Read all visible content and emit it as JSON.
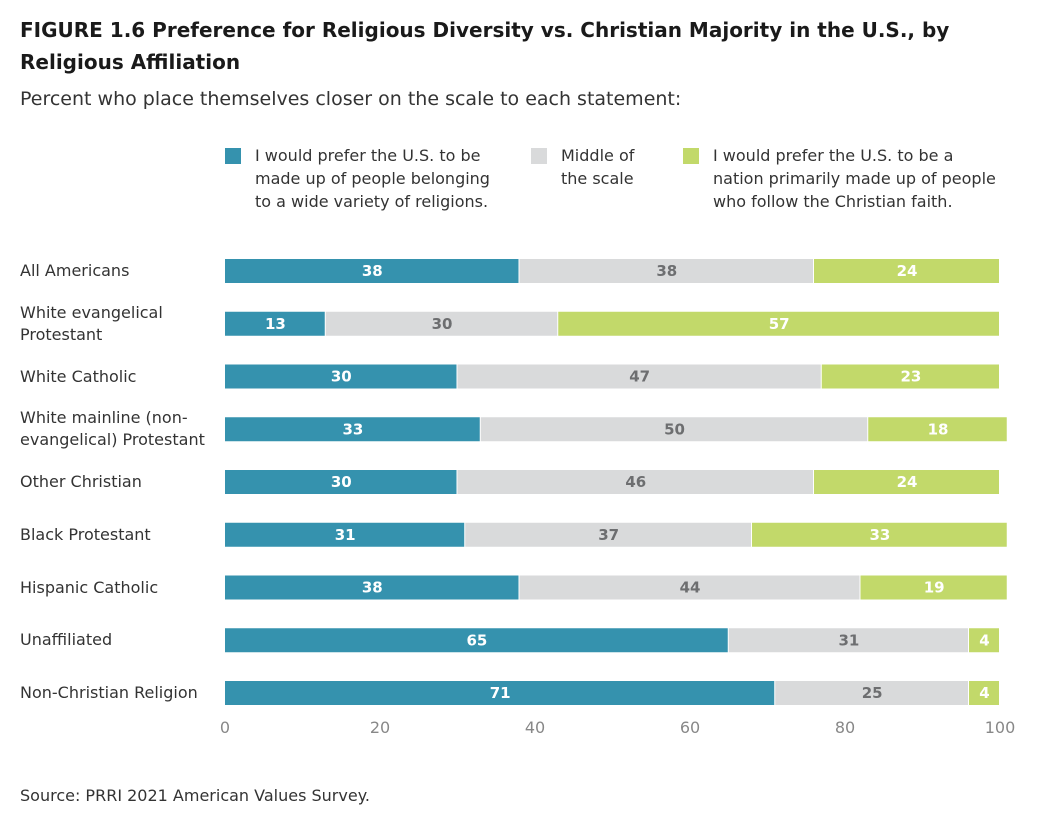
{
  "title": "FIGURE 1.6 Preference for Religious Diversity vs. Christian Majority in the U.S., by Religious Affiliation",
  "subtitle": "Percent who place themselves closer on the scale to each statement:",
  "source": "Source: PRRI 2021 American Values Survey.",
  "colors": {
    "variety": "#3592ae",
    "middle": "#d9dadb",
    "christian": "#c2d96a"
  },
  "chart_data": {
    "type": "bar",
    "orientation": "horizontal",
    "stacked": true,
    "categories": [
      "All Americans",
      "White evangelical\nProtestant",
      "White Catholic",
      "White mainline (non-\nevangelical) Protestant",
      "Other Christian",
      "Black Protestant",
      "Hispanic Catholic",
      "Unaffiliated",
      "Non-Christian Religion"
    ],
    "series": [
      {
        "name": "I would prefer the U.S. to be\nmade up of people belonging\nto a wide variety of religions.",
        "values": [
          38,
          13,
          30,
          33,
          30,
          31,
          38,
          65,
          71
        ]
      },
      {
        "name": "Middle of\nthe scale",
        "values": [
          38,
          30,
          47,
          50,
          46,
          37,
          44,
          31,
          25
        ]
      },
      {
        "name": "I would prefer the U.S. to be a\nnation primarily made up of people\nwho follow the Christian faith.",
        "values": [
          24,
          57,
          23,
          18,
          24,
          33,
          19,
          4,
          4
        ]
      }
    ],
    "xlim": [
      0,
      100
    ],
    "xticks": [
      0,
      20,
      40,
      60,
      80,
      100
    ],
    "legend_position": "top"
  }
}
